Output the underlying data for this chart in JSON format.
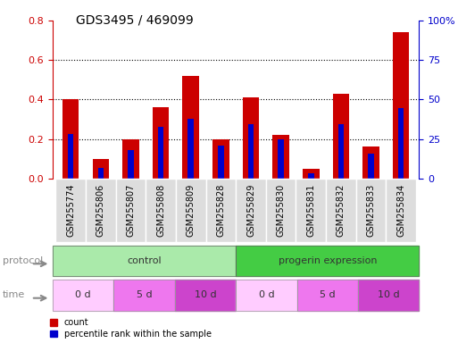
{
  "title": "GDS3495 / 469099",
  "samples": [
    "GSM255774",
    "GSM255806",
    "GSM255807",
    "GSM255808",
    "GSM255809",
    "GSM255828",
    "GSM255829",
    "GSM255830",
    "GSM255831",
    "GSM255832",
    "GSM255833",
    "GSM255834"
  ],
  "count_values": [
    0.4,
    0.1,
    0.2,
    0.36,
    0.52,
    0.2,
    0.41,
    0.22,
    0.05,
    0.43,
    0.16,
    0.74
  ],
  "percentile_values": [
    0.225,
    0.055,
    0.145,
    0.26,
    0.3,
    0.165,
    0.275,
    0.2,
    0.025,
    0.275,
    0.125,
    0.355
  ],
  "ylim_left": [
    0,
    0.8
  ],
  "ylim_right": [
    0,
    100
  ],
  "yticks_left": [
    0,
    0.2,
    0.4,
    0.6,
    0.8
  ],
  "yticks_right": [
    0,
    25,
    50,
    75,
    100
  ],
  "ytick_labels_right": [
    "0",
    "25",
    "50",
    "75",
    "100%"
  ],
  "color_count": "#cc0000",
  "color_percentile": "#0000cc",
  "bar_width": 0.55,
  "protocol_groups": [
    {
      "label": "control",
      "start": 0,
      "end": 5,
      "color": "#aaeaaa"
    },
    {
      "label": "progerin expression",
      "start": 6,
      "end": 11,
      "color": "#44cc44"
    }
  ],
  "time_groups": [
    {
      "label": "0 d",
      "start": 0,
      "end": 1,
      "color": "#ffccff"
    },
    {
      "label": "5 d",
      "start": 2,
      "end": 3,
      "color": "#ee77ee"
    },
    {
      "label": "10 d",
      "start": 4,
      "end": 5,
      "color": "#cc44cc"
    },
    {
      "label": "0 d",
      "start": 6,
      "end": 7,
      "color": "#ffccff"
    },
    {
      "label": "5 d",
      "start": 8,
      "end": 9,
      "color": "#ee77ee"
    },
    {
      "label": "10 d",
      "start": 10,
      "end": 11,
      "color": "#cc44cc"
    }
  ],
  "legend_count_label": "count",
  "legend_percentile_label": "percentile rank within the sample",
  "xlabel_protocol": "protocol",
  "xlabel_time": "time",
  "background_color": "#ffffff",
  "tick_color_left": "#cc0000",
  "tick_color_right": "#0000cc",
  "tick_label_bg": "#dddddd",
  "title_fontsize": 10,
  "axis_label_fontsize": 8,
  "tick_fontsize": 8,
  "sample_fontsize": 7
}
